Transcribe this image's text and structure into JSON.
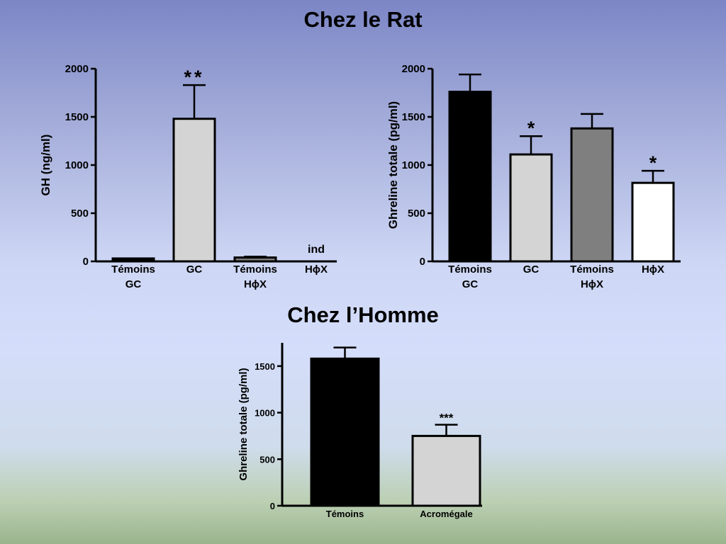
{
  "headings": {
    "rat": "Chez le Rat",
    "homme": "Chez l’Homme"
  },
  "chart_data": [
    {
      "id": "gh-rat",
      "type": "bar",
      "title": "",
      "ylabel": "GH (ng/ml)",
      "ylim": [
        0,
        2000
      ],
      "yticks": [
        0,
        500,
        1000,
        1500,
        2000
      ],
      "categories": [
        [
          "Témoins",
          "GC"
        ],
        [
          "GC"
        ],
        [
          "Témoins",
          "HϕX"
        ],
        [
          "HϕX"
        ]
      ],
      "values": [
        30,
        1480,
        40,
        null
      ],
      "errors": [
        0,
        350,
        10,
        0
      ],
      "fills": [
        "#000000",
        "#d4d4d4",
        "#7f7f7f",
        "#ffffff"
      ],
      "annotations": [
        "",
        "**",
        "",
        "ind"
      ]
    },
    {
      "id": "ghreline-rat",
      "type": "bar",
      "title": "",
      "ylabel": "Ghreline totale (pg/ml)",
      "ylim": [
        0,
        2000
      ],
      "yticks": [
        0,
        500,
        1000,
        1500,
        2000
      ],
      "categories": [
        [
          "Témoins",
          "GC"
        ],
        [
          "GC"
        ],
        [
          "Témoins",
          "HϕX"
        ],
        [
          "HϕX"
        ]
      ],
      "values": [
        1760,
        1110,
        1380,
        815
      ],
      "errors": [
        180,
        190,
        150,
        125
      ],
      "fills": [
        "#000000",
        "#d4d4d4",
        "#7f7f7f",
        "#ffffff"
      ],
      "annotations": [
        "",
        "*",
        "",
        "*"
      ]
    },
    {
      "id": "ghreline-homme",
      "type": "bar",
      "title": "",
      "ylabel": "Ghreline totale (pg/ml)",
      "ylim": [
        0,
        1750
      ],
      "yticks": [
        0,
        500,
        1000,
        1500
      ],
      "categories": [
        [
          "Témoins"
        ],
        [
          "Acromégale"
        ]
      ],
      "values": [
        1580,
        750
      ],
      "errors": [
        120,
        120
      ],
      "fills": [
        "#000000",
        "#d4d4d4"
      ],
      "annotations": [
        "",
        "***"
      ]
    }
  ]
}
